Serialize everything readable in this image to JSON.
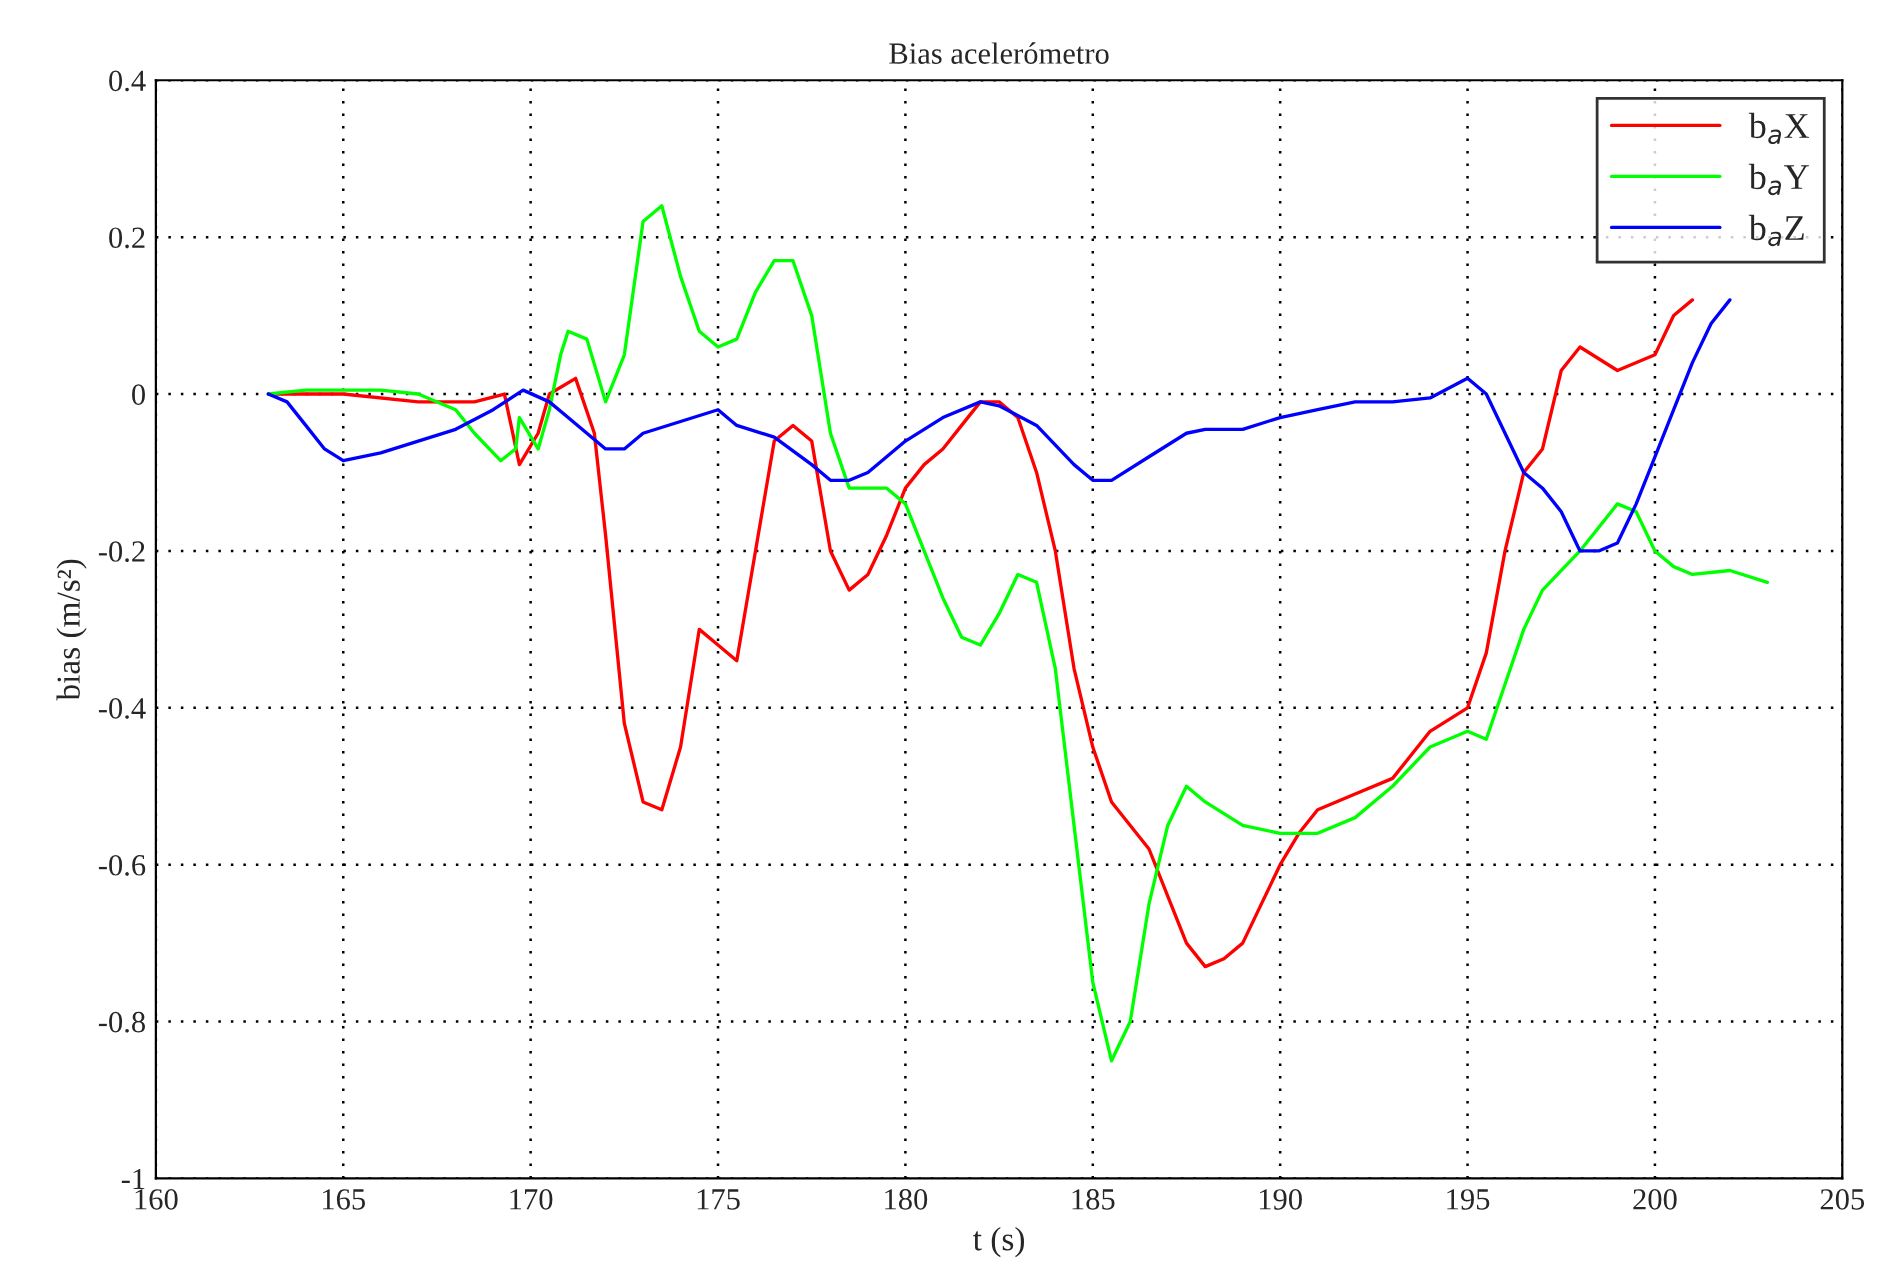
{
  "chart_data": {
    "type": "line",
    "title": "Bias acelerómetro",
    "xlabel": "t (s)",
    "ylabel": "bias (m/s²)",
    "xlim": [
      160,
      205
    ],
    "xticks": [
      160,
      165,
      170,
      175,
      180,
      185,
      190,
      195,
      200,
      205
    ],
    "ylim": [
      -1,
      0.4
    ],
    "yticks": [
      -1,
      -0.8,
      -0.6,
      -0.4,
      -0.2,
      0,
      0.2,
      0.4
    ],
    "grid": true,
    "legend": "top right",
    "line_style": "solid",
    "series": [
      {
        "name": "b$_{a}$X",
        "color": "#ff0000",
        "x": [
          163,
          165,
          167,
          168.5,
          169.3,
          169.7,
          170.2,
          170.5,
          171.2,
          171.7,
          172,
          172.5,
          173,
          173.5,
          174,
          174.5,
          175,
          175.5,
          176,
          176.5,
          177,
          177.5,
          178,
          178.5,
          179,
          179.5,
          180,
          180.5,
          181,
          181.5,
          182,
          182.5,
          183,
          183.5,
          184,
          184.5,
          185,
          185.5,
          186,
          186.5,
          187,
          187.5,
          188,
          188.5,
          189,
          189.5,
          190,
          190.5,
          191,
          192,
          193,
          194,
          195,
          195.5,
          196,
          196.5,
          197,
          197.5,
          198,
          199,
          200,
          200.5,
          201
        ],
        "values": [
          0,
          0,
          -0.01,
          -0.01,
          0.0,
          -0.09,
          -0.05,
          0,
          0.02,
          -0.05,
          -0.18,
          -0.42,
          -0.52,
          -0.53,
          -0.45,
          -0.3,
          -0.32,
          -0.34,
          -0.2,
          -0.06,
          -0.04,
          -0.06,
          -0.2,
          -0.25,
          -0.23,
          -0.18,
          -0.12,
          -0.09,
          -0.07,
          -0.04,
          -0.01,
          -0.01,
          -0.03,
          -0.1,
          -0.2,
          -0.35,
          -0.45,
          -0.52,
          -0.55,
          -0.58,
          -0.64,
          -0.7,
          -0.73,
          -0.72,
          -0.7,
          -0.65,
          -0.6,
          -0.56,
          -0.53,
          -0.51,
          -0.49,
          -0.43,
          -0.4,
          -0.33,
          -0.2,
          -0.1,
          -0.07,
          0.03,
          0.06,
          0.03,
          0.05,
          0.1,
          0.12
        ]
      },
      {
        "name": "b$_{a}$Y",
        "color": "#00ff00",
        "x": [
          163,
          164,
          166,
          167,
          168,
          168.5,
          169.2,
          169.6,
          169.7,
          170.2,
          170.5,
          170.8,
          171,
          171.5,
          172,
          172.5,
          173,
          173.5,
          174,
          174.5,
          175,
          175.5,
          176,
          176.5,
          177,
          177.5,
          178,
          178.5,
          179.5,
          180,
          180.5,
          181,
          181.5,
          182,
          182.5,
          183,
          183.5,
          184,
          184.5,
          185,
          185.5,
          186,
          186.5,
          187,
          187.5,
          188,
          189,
          190,
          191,
          192,
          193,
          194,
          195,
          195.5,
          196,
          196.5,
          197,
          198,
          199,
          199.5,
          200,
          200.5,
          201,
          202,
          203
        ],
        "values": [
          0,
          0.005,
          0.005,
          0.0,
          -0.02,
          -0.05,
          -0.085,
          -0.07,
          -0.03,
          -0.07,
          -0.02,
          0.05,
          0.08,
          0.07,
          -0.01,
          0.05,
          0.22,
          0.24,
          0.15,
          0.08,
          0.06,
          0.07,
          0.13,
          0.17,
          0.17,
          0.1,
          -0.05,
          -0.12,
          -0.12,
          -0.14,
          -0.2,
          -0.26,
          -0.31,
          -0.32,
          -0.28,
          -0.23,
          -0.24,
          -0.35,
          -0.55,
          -0.75,
          -0.85,
          -0.8,
          -0.65,
          -0.55,
          -0.5,
          -0.52,
          -0.55,
          -0.56,
          -0.56,
          -0.54,
          -0.5,
          -0.45,
          -0.43,
          -0.44,
          -0.37,
          -0.3,
          -0.25,
          -0.2,
          -0.14,
          -0.15,
          -0.2,
          -0.22,
          -0.23,
          -0.225,
          -0.24
        ]
      },
      {
        "name": "b$_{a}$Z",
        "color": "#0000ff",
        "x": [
          163,
          163.5,
          164,
          164.5,
          165,
          166,
          167,
          168,
          169,
          169.8,
          170.5,
          171,
          171.5,
          172,
          172.5,
          173,
          174,
          175,
          175.5,
          176.5,
          177.5,
          178,
          178.5,
          179,
          179.5,
          180,
          181,
          182,
          182.5,
          183.5,
          184.5,
          185,
          185.5,
          186.5,
          187.5,
          188,
          189,
          190,
          191,
          192,
          193,
          194,
          195,
          195.5,
          196,
          196.5,
          197,
          197.5,
          198,
          198.5,
          199,
          199.5,
          200,
          200.5,
          201,
          201.5,
          202
        ],
        "values": [
          0,
          -0.01,
          -0.04,
          -0.07,
          -0.085,
          -0.075,
          -0.06,
          -0.045,
          -0.02,
          0.005,
          -0.01,
          -0.03,
          -0.05,
          -0.07,
          -0.07,
          -0.05,
          -0.035,
          -0.02,
          -0.04,
          -0.055,
          -0.09,
          -0.11,
          -0.11,
          -0.1,
          -0.08,
          -0.06,
          -0.03,
          -0.01,
          -0.015,
          -0.04,
          -0.09,
          -0.11,
          -0.11,
          -0.08,
          -0.05,
          -0.045,
          -0.045,
          -0.03,
          -0.02,
          -0.01,
          -0.01,
          -0.005,
          0.02,
          0.0,
          -0.05,
          -0.1,
          -0.12,
          -0.15,
          -0.2,
          -0.2,
          -0.19,
          -0.14,
          -0.08,
          -0.02,
          0.04,
          0.09,
          0.12
        ]
      }
    ]
  }
}
